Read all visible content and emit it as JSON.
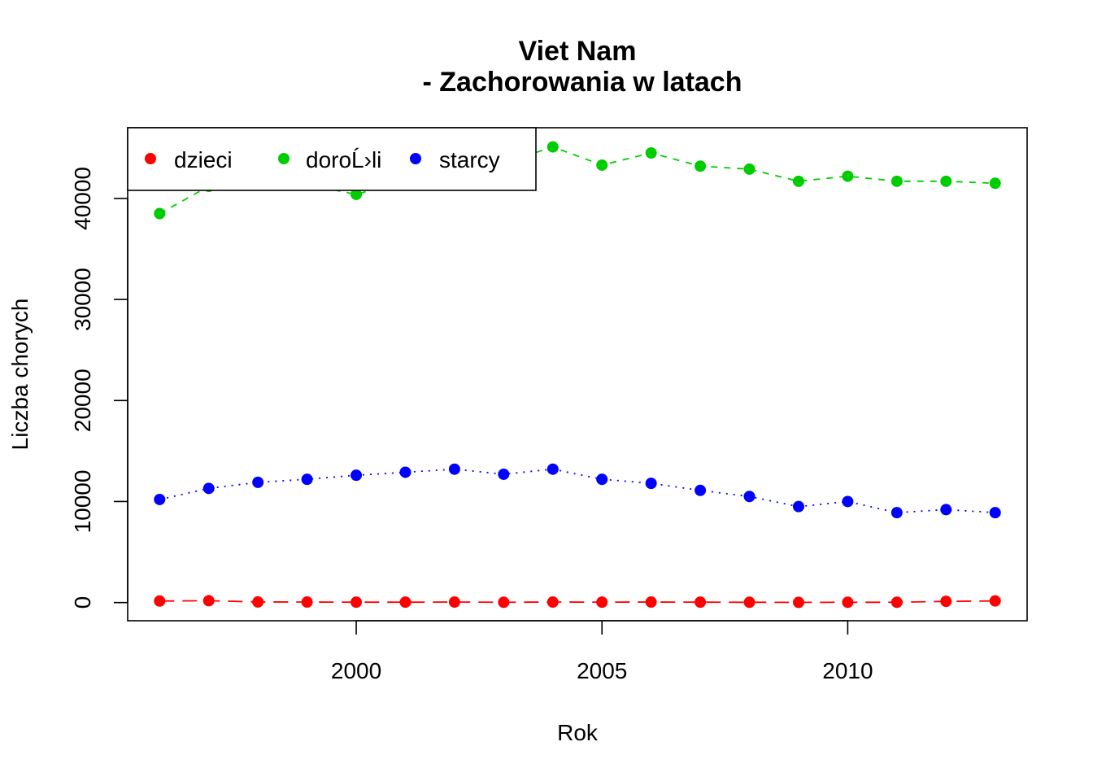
{
  "chart_data": {
    "type": "line",
    "title_line1": "Viet Nam",
    "title_line2": "- Zachorowania w latach",
    "xlabel": "Rok",
    "ylabel": "Liczba chorych",
    "xlim": [
      1995.35,
      2013.65
    ],
    "ylim": [
      -1800,
      47000
    ],
    "x_ticks": [
      2000,
      2005,
      2010
    ],
    "x_tick_labels": [
      "2000",
      "2005",
      "2010"
    ],
    "y_ticks": [
      0,
      10000,
      20000,
      30000,
      40000
    ],
    "y_tick_labels": [
      "0",
      "10000",
      "20000",
      "30000",
      "40000"
    ],
    "grid": false,
    "legend_position": "top-left",
    "x": [
      1996,
      1997,
      1998,
      1999,
      2000,
      2001,
      2002,
      2003,
      2004,
      2005,
      2006,
      2007,
      2008,
      2009,
      2010,
      2011,
      2012,
      2013
    ],
    "series": [
      {
        "name": "dzieci",
        "color": "#ff0000",
        "line_style": "longdash",
        "values": [
          150,
          180,
          60,
          50,
          40,
          40,
          50,
          30,
          50,
          40,
          50,
          40,
          30,
          20,
          30,
          30,
          120,
          160
        ]
      },
      {
        "name": "doroĹ›li",
        "color": "#00cd00",
        "line_style": "dashed",
        "values": [
          38500,
          41200,
          41600,
          41400,
          40400,
          41800,
          42300,
          43500,
          45100,
          43300,
          44500,
          43200,
          42900,
          41700,
          42200,
          41700,
          41700,
          41500
        ]
      },
      {
        "name": "starcy",
        "color": "#0000ff",
        "line_style": "dotted",
        "values": [
          10200,
          11300,
          11900,
          12200,
          12600,
          12900,
          13200,
          12700,
          13200,
          12200,
          11800,
          11100,
          10500,
          9500,
          10000,
          8900,
          9200,
          8900
        ]
      }
    ]
  }
}
